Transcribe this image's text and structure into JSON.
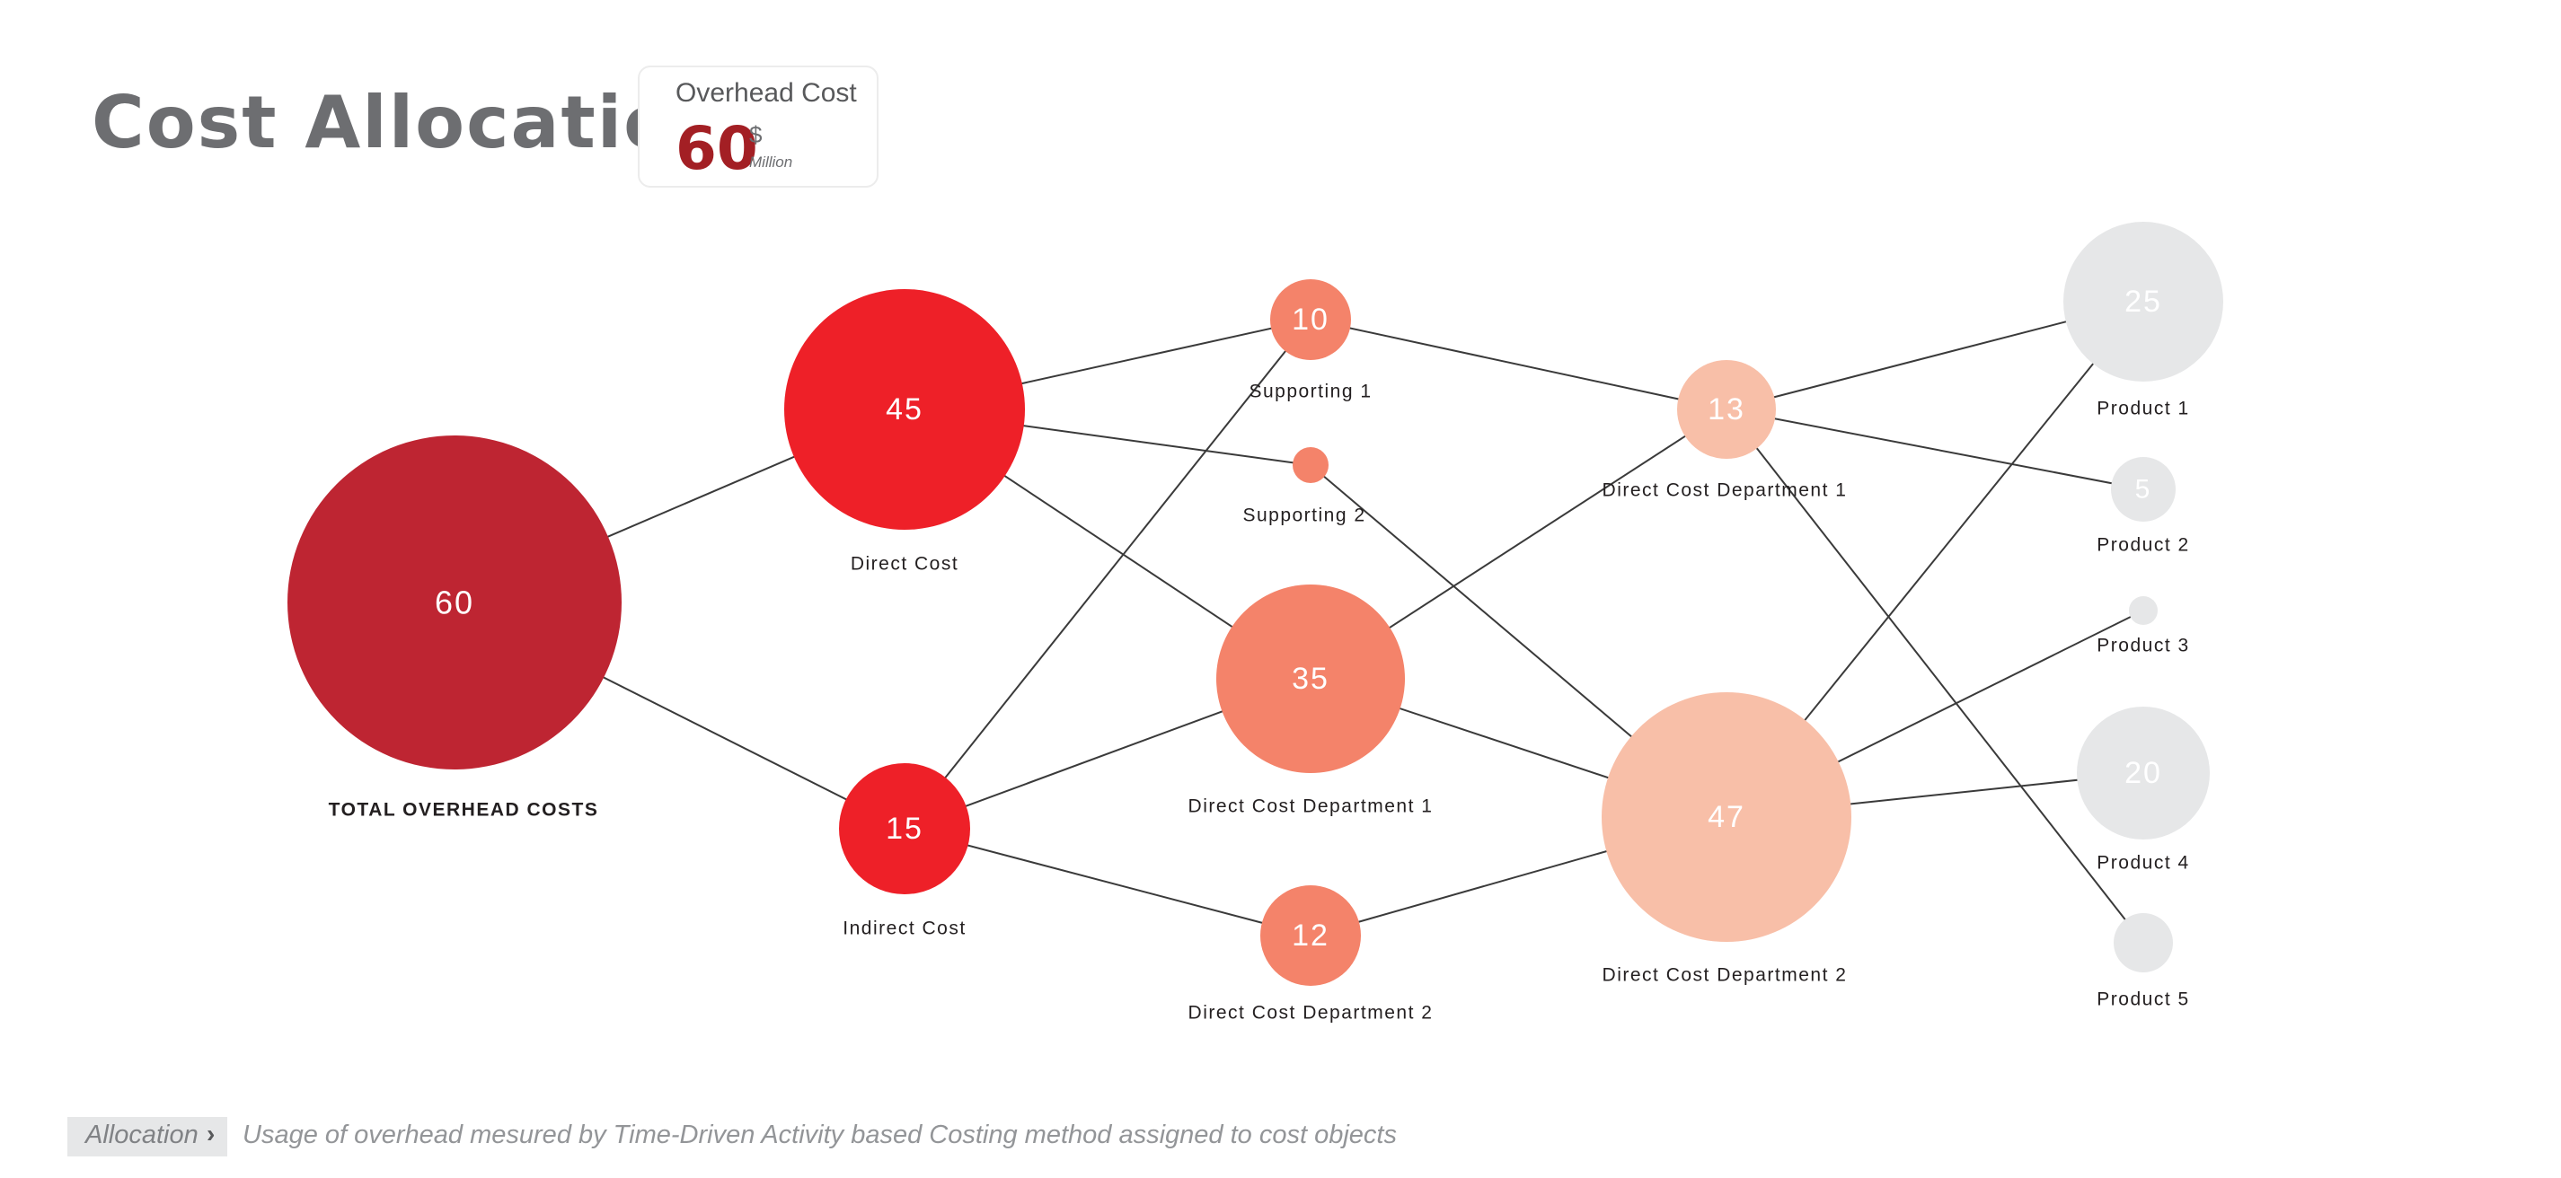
{
  "title": "Cost Allocation",
  "overhead_card": {
    "label": "Overhead Cost",
    "value": "60",
    "currency": "$",
    "unit": "Million"
  },
  "colors": {
    "total": "#be2532",
    "primary": "#ee2028",
    "supporting": "#f4836a",
    "department": "#f8bfa8",
    "product": "#e6e7e8",
    "link": "#3a3a3a"
  },
  "nodes": [
    {
      "id": "total",
      "value": "60",
      "label": "TOTAL OVERHEAD COSTS",
      "color": "total"
    },
    {
      "id": "direct",
      "value": "45",
      "label": "Direct Cost",
      "color": "primary"
    },
    {
      "id": "indirect",
      "value": "15",
      "label": "Indirect Cost",
      "color": "primary"
    },
    {
      "id": "sup1",
      "value": "10",
      "label": "Supporting 1",
      "color": "supporting"
    },
    {
      "id": "sup2",
      "value": "",
      "label": "Supporting 2",
      "color": "supporting"
    },
    {
      "id": "dcd1a",
      "value": "35",
      "label": "Direct Cost Department 1",
      "color": "supporting"
    },
    {
      "id": "dcd2a",
      "value": "12",
      "label": "Direct Cost Department 2",
      "color": "supporting"
    },
    {
      "id": "dcd1b",
      "value": "13",
      "label": "Direct Cost Department 1",
      "color": "department"
    },
    {
      "id": "dcd2b",
      "value": "47",
      "label": "Direct Cost Department 2",
      "color": "department"
    },
    {
      "id": "p1",
      "value": "25",
      "label": "Product 1",
      "color": "product"
    },
    {
      "id": "p2",
      "value": "5",
      "label": "Product 2",
      "color": "product"
    },
    {
      "id": "p3",
      "value": "",
      "label": "Product 3",
      "color": "product"
    },
    {
      "id": "p4",
      "value": "20",
      "label": "Product 4",
      "color": "product"
    },
    {
      "id": "p5",
      "value": "",
      "label": "Product 5",
      "color": "product"
    }
  ],
  "links": [
    [
      "total",
      "direct"
    ],
    [
      "total",
      "indirect"
    ],
    [
      "direct",
      "sup1"
    ],
    [
      "direct",
      "sup2"
    ],
    [
      "direct",
      "dcd1a"
    ],
    [
      "indirect",
      "sup1"
    ],
    [
      "indirect",
      "dcd1a"
    ],
    [
      "indirect",
      "dcd2a"
    ],
    [
      "sup1",
      "dcd1b"
    ],
    [
      "sup2",
      "dcd2b"
    ],
    [
      "dcd1a",
      "dcd1b"
    ],
    [
      "dcd1a",
      "dcd2b"
    ],
    [
      "dcd2a",
      "dcd2b"
    ],
    [
      "dcd1b",
      "p1"
    ],
    [
      "dcd1b",
      "p2"
    ],
    [
      "dcd1b",
      "p5"
    ],
    [
      "dcd2b",
      "p1"
    ],
    [
      "dcd2b",
      "p3"
    ],
    [
      "dcd2b",
      "p4"
    ]
  ],
  "footer": {
    "tag": "Allocation",
    "description": "Usage of overhead mesured by Time-Driven Activity based Costing method assigned to cost objects"
  }
}
